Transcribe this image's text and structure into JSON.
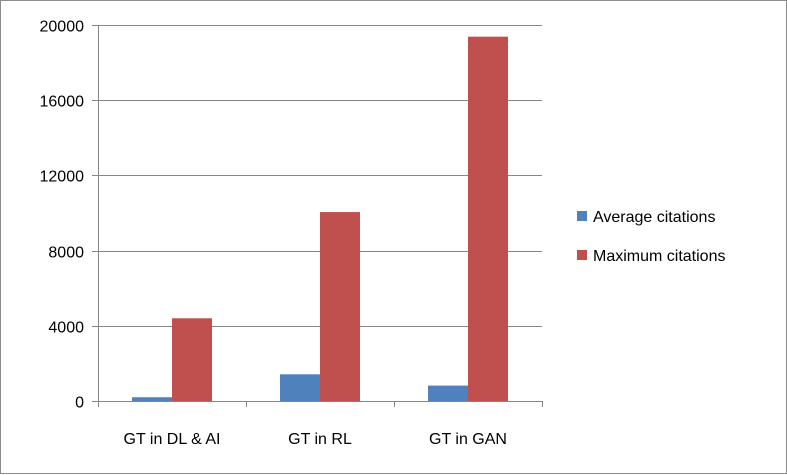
{
  "chart_data": {
    "type": "bar",
    "title": "",
    "xlabel": "",
    "ylabel": "",
    "categories": [
      "GT in DL & AI",
      "GT in RL",
      "GT in GAN"
    ],
    "series": [
      {
        "name": "Average citations",
        "color": "#4f81bd",
        "values": [
          200,
          1420,
          820
        ]
      },
      {
        "name": "Maximum citations",
        "color": "#c0504d",
        "values": [
          4400,
          10050,
          19380
        ]
      }
    ],
    "ylim": [
      0,
      20000
    ],
    "yticks": [
      0,
      4000,
      8000,
      12000,
      16000,
      20000
    ],
    "grid": true,
    "legend_position": "right"
  }
}
